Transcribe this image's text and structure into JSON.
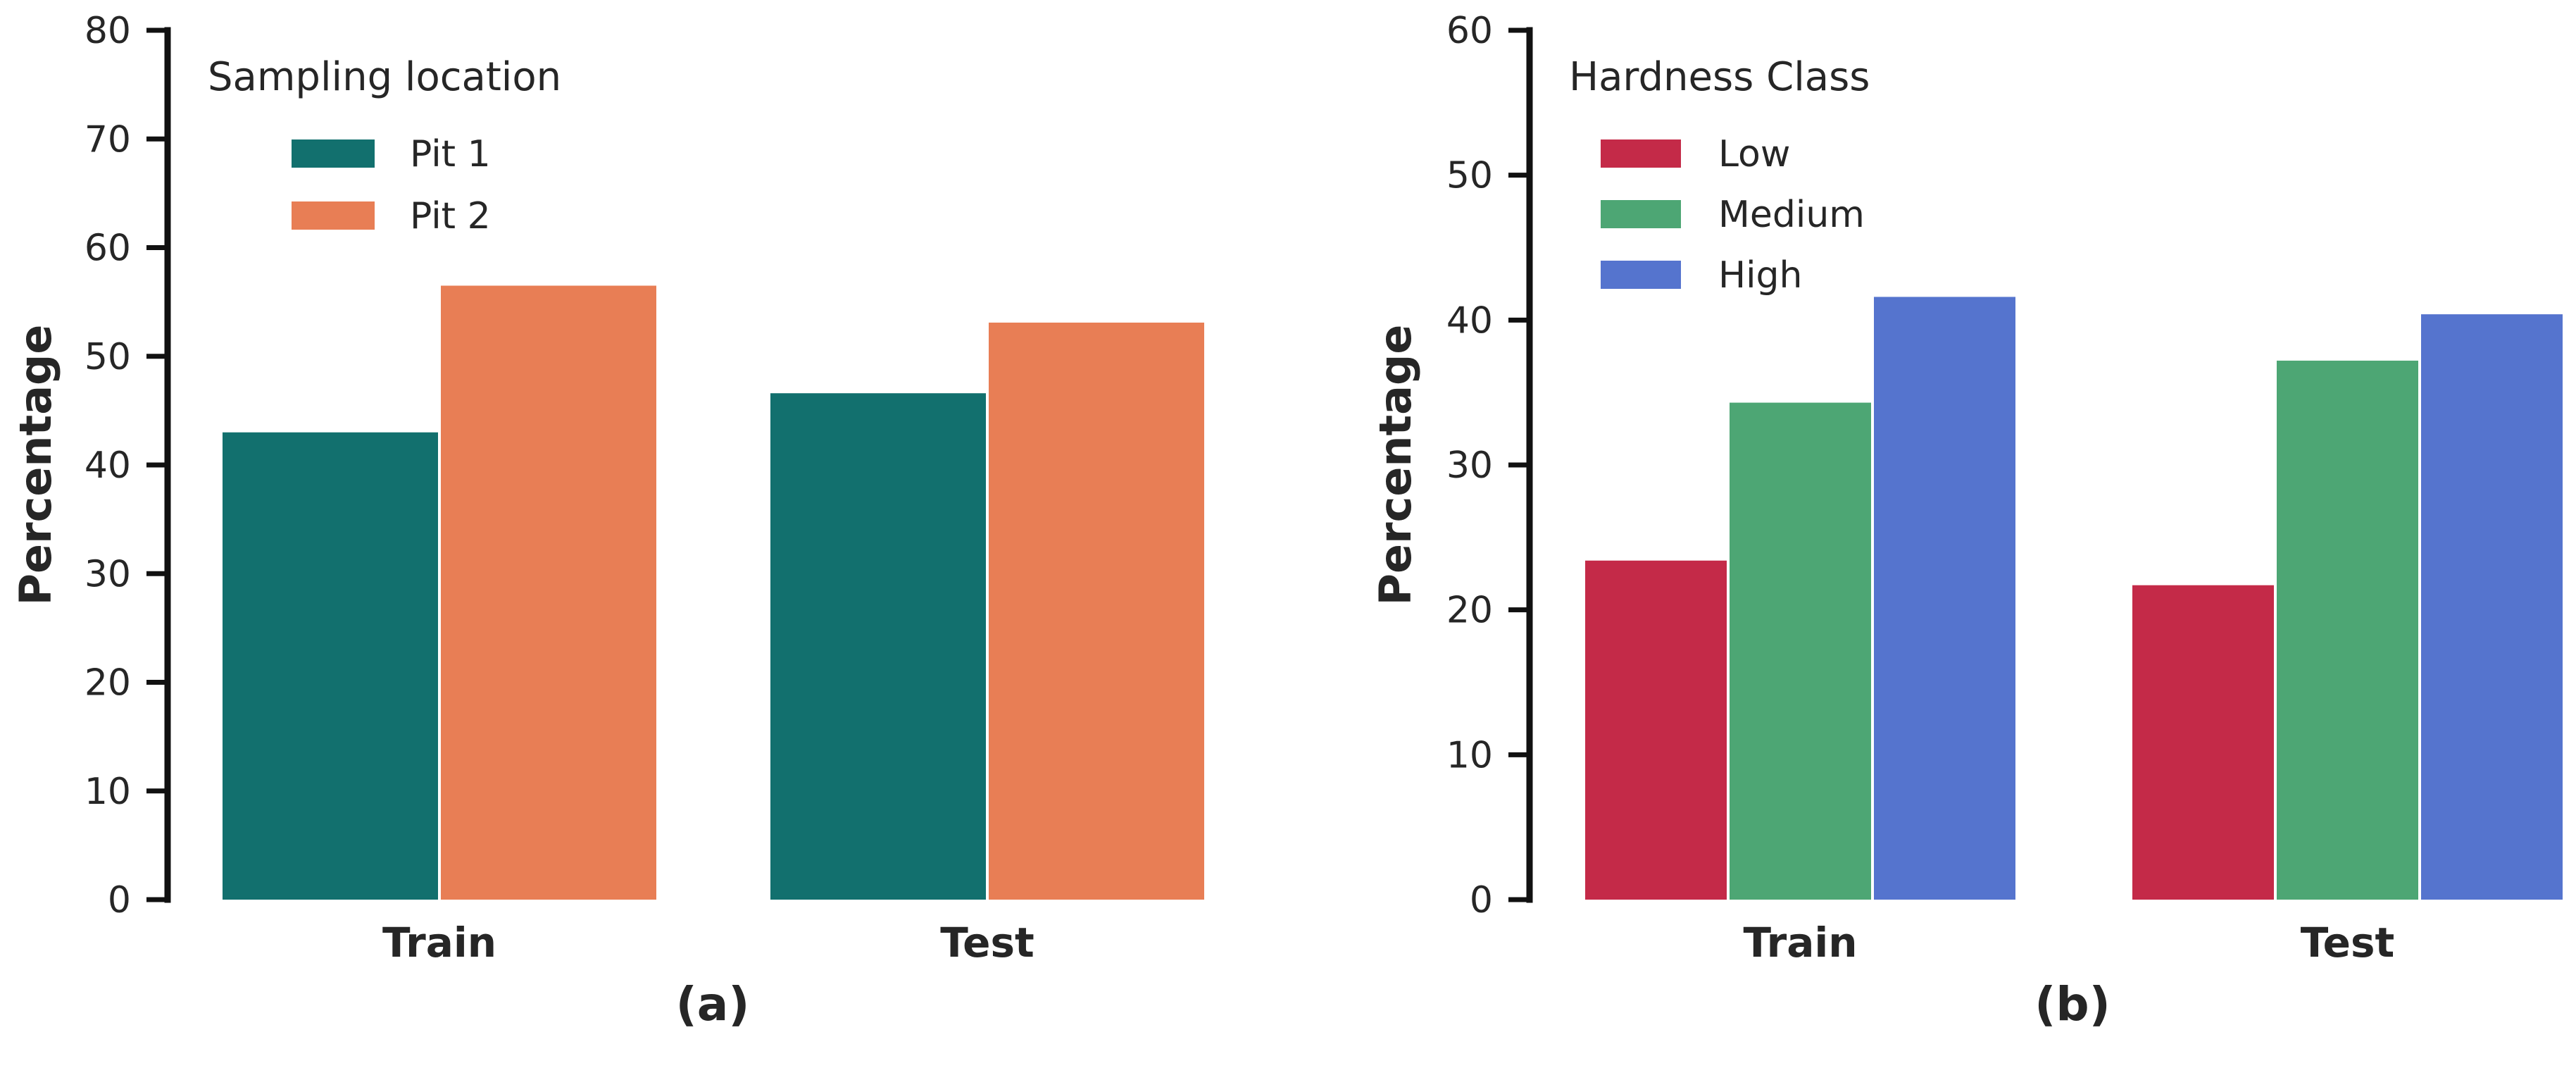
{
  "chart_data": [
    {
      "type": "bar",
      "panel_label": "(a)",
      "ylabel": "Percentage",
      "xlabel": "",
      "ylim": [
        0,
        80
      ],
      "yticks": [
        0,
        10,
        20,
        30,
        40,
        50,
        60,
        70,
        80
      ],
      "categories": [
        "Train",
        "Test"
      ],
      "legend": {
        "title": "Sampling location",
        "placement": "top-left"
      },
      "grid": false,
      "series": [
        {
          "name": "Pit 1",
          "color": "#12706e",
          "values": [
            43.0,
            46.6
          ]
        },
        {
          "name": "Pit 2",
          "color": "#e87e55",
          "values": [
            56.5,
            53.1
          ]
        }
      ]
    },
    {
      "type": "bar",
      "panel_label": "(b)",
      "ylabel": "Percentage",
      "xlabel": "",
      "ylim": [
        0,
        60
      ],
      "yticks": [
        0,
        10,
        20,
        30,
        40,
        50,
        60
      ],
      "categories": [
        "Train",
        "Test"
      ],
      "legend": {
        "title": "Hardness Class",
        "placement": "top-left"
      },
      "grid": false,
      "series": [
        {
          "name": "Low",
          "color": "#c42a48",
          "values": [
            23.4,
            21.7
          ]
        },
        {
          "name": "Medium",
          "color": "#4da674",
          "values": [
            34.3,
            37.2
          ]
        },
        {
          "name": "High",
          "color": "#5574ce",
          "values": [
            41.6,
            40.4
          ]
        }
      ]
    }
  ]
}
